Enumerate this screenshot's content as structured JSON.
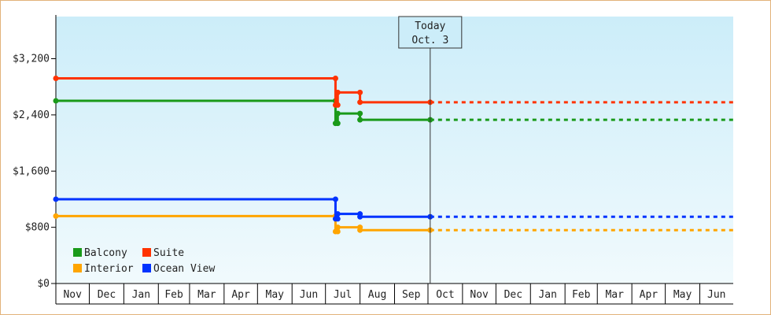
{
  "chart_data": {
    "type": "line",
    "step": true,
    "title": "",
    "xlabel": "",
    "ylabel": "",
    "ylim": [
      0,
      3800
    ],
    "y_ticks": [
      0,
      800,
      1600,
      2400,
      3200
    ],
    "y_tick_labels": [
      "$0",
      "$800",
      "$1,600",
      "$2,400",
      "$3,200"
    ],
    "x_ticks": [
      "Nov",
      "Dec",
      "Jan",
      "Feb",
      "Mar",
      "Apr",
      "May",
      "Jun",
      "Jul",
      "Aug",
      "Sep",
      "Oct",
      "Nov",
      "Dec",
      "Jan",
      "Feb",
      "Mar",
      "Apr",
      "May",
      "Jun"
    ],
    "x_start": "2022-11-01",
    "x_end": "2024-07-01",
    "today": {
      "date": "2023-10-03",
      "line1": "Today",
      "line2": "Oct. 3"
    },
    "legend_position": "bottom-left",
    "series": [
      {
        "name": "Balcony",
        "color": "#1a9a1a",
        "points": [
          [
            "2022-11-01",
            2600
          ],
          [
            "2023-07-10",
            2600
          ],
          [
            "2023-07-10",
            2280
          ],
          [
            "2023-07-12",
            2280
          ],
          [
            "2023-07-12",
            2420
          ],
          [
            "2023-08-01",
            2420
          ],
          [
            "2023-08-01",
            2330
          ],
          [
            "2023-10-03",
            2330
          ]
        ],
        "projection": [
          [
            "2023-10-03",
            2330
          ],
          [
            "2024-07-01",
            2330
          ]
        ]
      },
      {
        "name": "Suite",
        "color": "#ff3300",
        "points": [
          [
            "2022-11-01",
            2920
          ],
          [
            "2023-07-10",
            2920
          ],
          [
            "2023-07-10",
            2540
          ],
          [
            "2023-07-12",
            2540
          ],
          [
            "2023-07-12",
            2720
          ],
          [
            "2023-08-01",
            2720
          ],
          [
            "2023-08-01",
            2580
          ],
          [
            "2023-10-03",
            2580
          ]
        ],
        "projection": [
          [
            "2023-10-03",
            2580
          ],
          [
            "2024-07-01",
            2580
          ]
        ]
      },
      {
        "name": "Interior",
        "color": "#ffa500",
        "points": [
          [
            "2022-11-01",
            960
          ],
          [
            "2023-07-10",
            960
          ],
          [
            "2023-07-10",
            740
          ],
          [
            "2023-07-12",
            740
          ],
          [
            "2023-07-12",
            800
          ],
          [
            "2023-08-01",
            800
          ],
          [
            "2023-08-01",
            760
          ],
          [
            "2023-10-03",
            760
          ]
        ],
        "projection": [
          [
            "2023-10-03",
            760
          ],
          [
            "2024-07-01",
            760
          ]
        ]
      },
      {
        "name": "Ocean View",
        "color": "#0033ff",
        "points": [
          [
            "2022-11-01",
            1200
          ],
          [
            "2023-07-10",
            1200
          ],
          [
            "2023-07-10",
            920
          ],
          [
            "2023-07-12",
            920
          ],
          [
            "2023-07-12",
            990
          ],
          [
            "2023-08-01",
            990
          ],
          [
            "2023-08-01",
            950
          ],
          [
            "2023-10-03",
            950
          ]
        ],
        "projection": [
          [
            "2023-10-03",
            950
          ],
          [
            "2024-07-01",
            950
          ]
        ]
      }
    ]
  }
}
